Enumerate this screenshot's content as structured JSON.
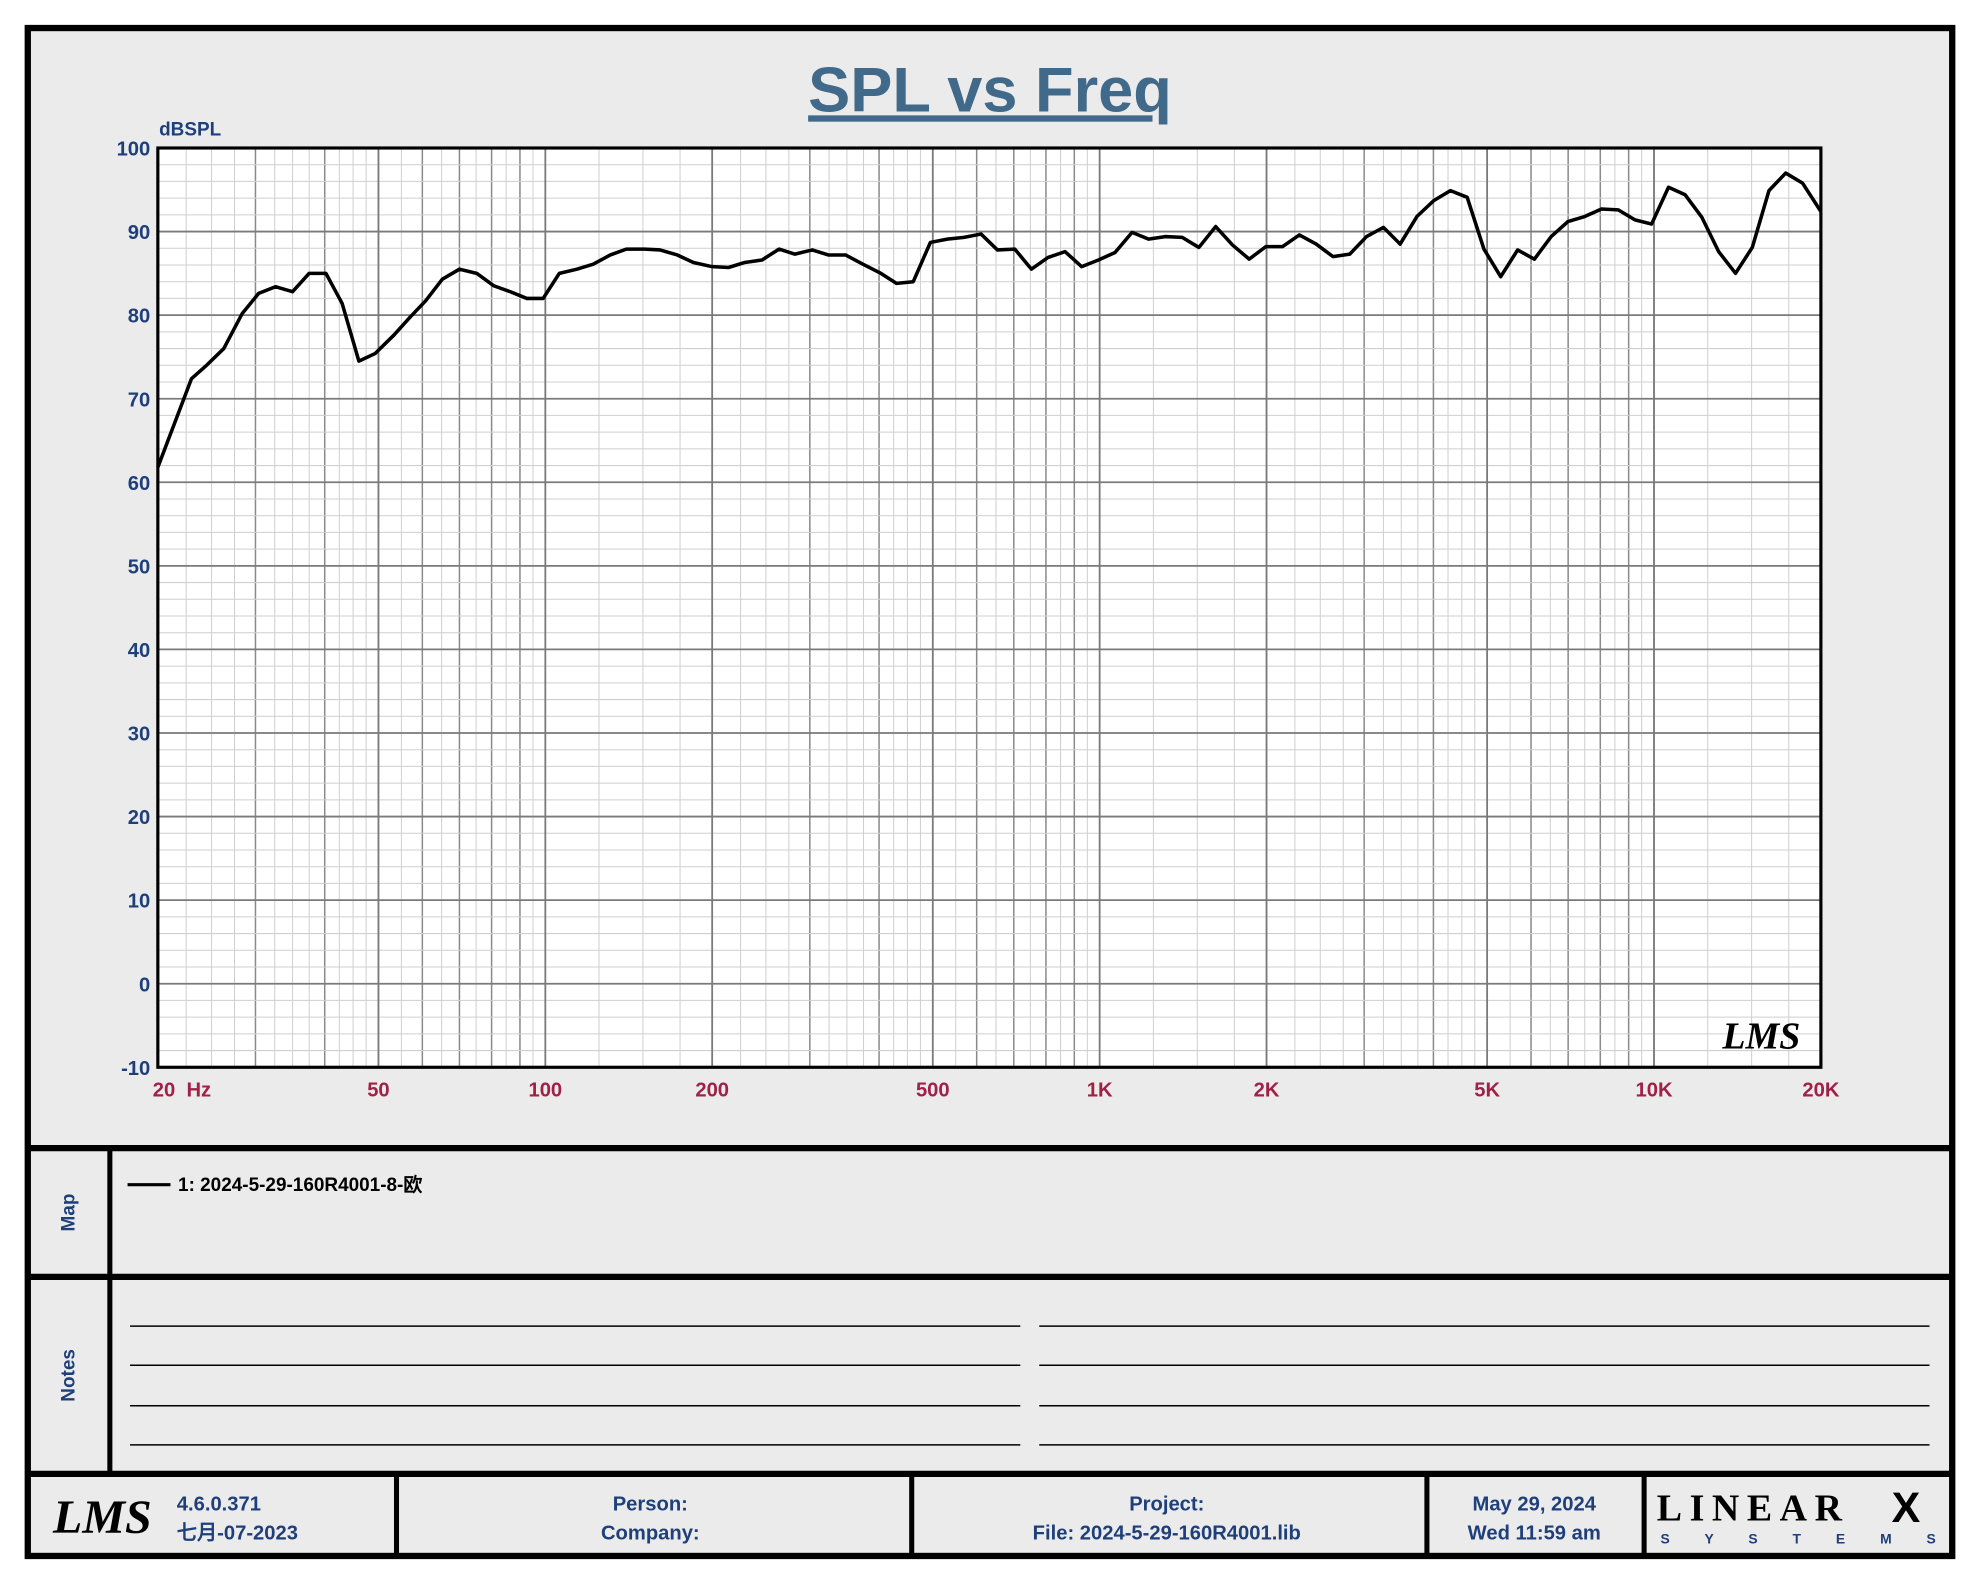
{
  "chart_data": {
    "type": "line",
    "title": "SPL vs Freq",
    "y_label": "dBSPL",
    "log_x": true,
    "grid": true,
    "x": [
      20,
      23,
      24.4,
      26.3,
      28.4,
      30.4,
      32.6,
      35,
      37.5,
      40.2,
      43,
      46.1,
      49.3,
      53.3,
      57.1,
      60.8,
      65.2,
      70,
      75.2,
      80.8,
      86.5,
      92.6,
      99.1,
      106,
      114,
      122,
      131,
      140,
      151,
      161,
      173,
      185,
      200,
      214,
      229,
      246,
      264,
      282,
      303,
      324,
      348,
      374,
      403,
      430,
      461,
      495,
      531,
      569,
      611,
      654,
      703,
      753,
      807,
      866,
      928,
      995,
      1066,
      1144,
      1225,
      1313,
      1409,
      1510,
      1619,
      1736,
      1861,
      1994,
      2138,
      2292,
      2458,
      2636,
      2826,
      3030,
      3250,
      3484,
      3735,
      4005,
      4293,
      4602,
      4934,
      5290,
      5675,
      6084,
      6524,
      6994,
      7499,
      8040,
      8620,
      9240,
      9900,
      10620,
      11380,
      12200,
      13080,
      14030,
      15040,
      16120,
      17280,
      18530,
      20000
    ],
    "series": [
      {
        "name": "1: 2024-5-29-160R4001-8-欧",
        "color": "#000000",
        "values": [
          61.8,
          72.4,
          73.9,
          76,
          80.2,
          82.6,
          83.4,
          82.8,
          85,
          85,
          81.4,
          74.5,
          75.4,
          77.6,
          79.8,
          81.7,
          84.3,
          85.5,
          85,
          83.5,
          82.8,
          82,
          82,
          85,
          85.5,
          86.1,
          87.2,
          87.9,
          87.9,
          87.8,
          87.2,
          86.3,
          85.8,
          85.7,
          86.3,
          86.6,
          87.9,
          87.3,
          87.8,
          87.2,
          87.2,
          86.1,
          85,
          83.8,
          84,
          88.7,
          89.1,
          89.3,
          89.7,
          87.8,
          87.9,
          85.5,
          86.9,
          87.6,
          85.8,
          86.6,
          87.5,
          89.9,
          89.1,
          89.4,
          89.3,
          88.1,
          90.6,
          88.4,
          86.7,
          88.2,
          88.2,
          89.6,
          88.5,
          87,
          87.3,
          89.4,
          90.5,
          88.5,
          91.8,
          93.7,
          94.9,
          94.1,
          87.9,
          84.6,
          87.8,
          86.7,
          89.4,
          91.2,
          91.8,
          92.7,
          92.6,
          91.4,
          90.9,
          95.3,
          94.4,
          91.7,
          87.6,
          85,
          88.1,
          94.9,
          97,
          95.8,
          92.4
        ]
      }
    ],
    "xlim": [
      20,
      20000
    ],
    "ylim": [
      -10,
      100
    ],
    "xticks": [
      {
        "value": 20,
        "label": "20  Hz"
      },
      50,
      100,
      200,
      500,
      {
        "value": 1000,
        "label": "1K"
      },
      {
        "value": 2000,
        "label": "2K"
      },
      {
        "value": 5000,
        "label": "5K"
      },
      {
        "value": 10000,
        "label": "10K"
      },
      {
        "value": 20000,
        "label": "20K"
      }
    ],
    "yticks": [
      -10,
      0,
      10,
      20,
      30,
      40,
      50,
      60,
      70,
      80,
      90,
      100
    ],
    "watermark": "LMS"
  },
  "map_label": "Map",
  "notes_label": "Notes",
  "footer": {
    "logo": "LMS",
    "version": "4.6.0.371",
    "build_date": "七月-07-2023",
    "person": "Person:",
    "company": "Company:",
    "project": "Project:",
    "file": "File: 2024-5-29-160R4001.lib",
    "date": "May 29, 2024",
    "time": "Wed 11:59 am",
    "brand": "LINEAR",
    "brand_x": "X",
    "brand_sub": "S Y S T E M S"
  }
}
